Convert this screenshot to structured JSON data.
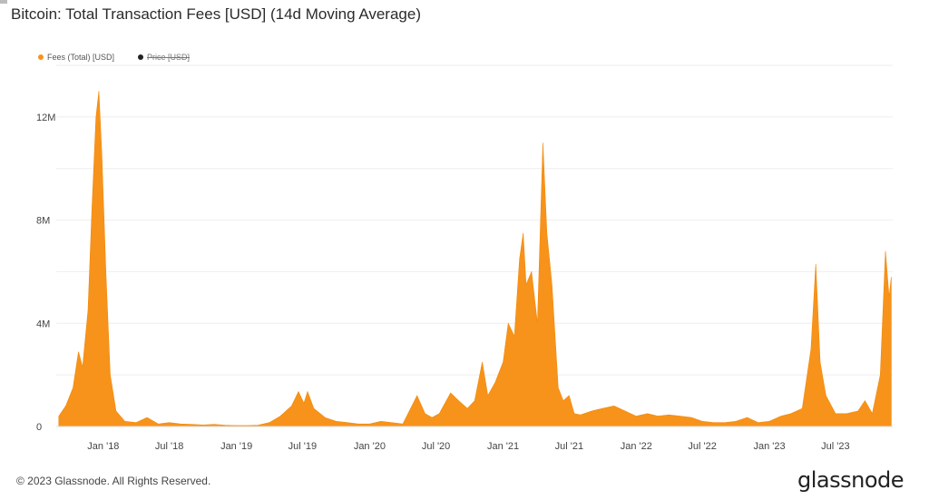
{
  "header": {
    "title": "Bitcoin: Total Transaction Fees [USD] (14d Moving Average)"
  },
  "legend": [
    {
      "label": "Fees (Total) [USD]",
      "color": "#f7931a",
      "active": true
    },
    {
      "label": "Price [USD]",
      "color": "#222222",
      "active": false
    }
  ],
  "footer": {
    "copyright": "© 2023 Glassnode. All Rights Reserved.",
    "brand": "glassnode"
  },
  "colors": {
    "fill": "#f7931a",
    "grid": "#eeeeee"
  },
  "chart_data": {
    "type": "area",
    "title": "Bitcoin: Total Transaction Fees [USD] (14d Moving Average)",
    "series": [
      {
        "name": "Fees (Total) [USD]",
        "points": [
          [
            "2017-09-01",
            0.4
          ],
          [
            "2017-09-20",
            0.8
          ],
          [
            "2017-10-10",
            1.5
          ],
          [
            "2017-10-25",
            2.9
          ],
          [
            "2017-11-05",
            2.3
          ],
          [
            "2017-11-20",
            4.5
          ],
          [
            "2017-12-01",
            8.5
          ],
          [
            "2017-12-12",
            12.0
          ],
          [
            "2017-12-20",
            13.0
          ],
          [
            "2017-12-28",
            10.5
          ],
          [
            "2018-01-08",
            6.0
          ],
          [
            "2018-01-20",
            2.0
          ],
          [
            "2018-02-05",
            0.6
          ],
          [
            "2018-03-01",
            0.2
          ],
          [
            "2018-04-01",
            0.15
          ],
          [
            "2018-05-01",
            0.35
          ],
          [
            "2018-06-01",
            0.1
          ],
          [
            "2018-07-01",
            0.15
          ],
          [
            "2018-08-01",
            0.1
          ],
          [
            "2018-09-01",
            0.08
          ],
          [
            "2018-10-01",
            0.06
          ],
          [
            "2018-11-01",
            0.08
          ],
          [
            "2018-12-01",
            0.05
          ],
          [
            "2019-01-01",
            0.04
          ],
          [
            "2019-02-01",
            0.04
          ],
          [
            "2019-03-01",
            0.05
          ],
          [
            "2019-04-01",
            0.15
          ],
          [
            "2019-05-01",
            0.4
          ],
          [
            "2019-06-01",
            0.8
          ],
          [
            "2019-06-20",
            1.35
          ],
          [
            "2019-07-05",
            0.9
          ],
          [
            "2019-07-15",
            1.35
          ],
          [
            "2019-08-01",
            0.7
          ],
          [
            "2019-09-01",
            0.35
          ],
          [
            "2019-10-01",
            0.2
          ],
          [
            "2019-11-01",
            0.15
          ],
          [
            "2019-12-01",
            0.1
          ],
          [
            "2020-01-01",
            0.1
          ],
          [
            "2020-02-01",
            0.2
          ],
          [
            "2020-03-01",
            0.15
          ],
          [
            "2020-04-01",
            0.1
          ],
          [
            "2020-05-10",
            1.2
          ],
          [
            "2020-06-01",
            0.5
          ],
          [
            "2020-06-20",
            0.35
          ],
          [
            "2020-07-10",
            0.5
          ],
          [
            "2020-08-10",
            1.3
          ],
          [
            "2020-09-01",
            1.0
          ],
          [
            "2020-09-25",
            0.7
          ],
          [
            "2020-10-15",
            1.0
          ],
          [
            "2020-11-05",
            2.5
          ],
          [
            "2020-11-20",
            1.2
          ],
          [
            "2020-12-10",
            1.7
          ],
          [
            "2021-01-01",
            2.5
          ],
          [
            "2021-01-15",
            4.0
          ],
          [
            "2021-02-01",
            3.5
          ],
          [
            "2021-02-15",
            6.5
          ],
          [
            "2021-02-25",
            7.5
          ],
          [
            "2021-03-05",
            5.5
          ],
          [
            "2021-03-20",
            6.0
          ],
          [
            "2021-04-05",
            4.0
          ],
          [
            "2021-04-20",
            11.0
          ],
          [
            "2021-05-01",
            7.5
          ],
          [
            "2021-05-15",
            5.5
          ],
          [
            "2021-06-01",
            1.5
          ],
          [
            "2021-06-15",
            1.0
          ],
          [
            "2021-07-01",
            1.2
          ],
          [
            "2021-07-15",
            0.5
          ],
          [
            "2021-08-01",
            0.45
          ],
          [
            "2021-09-01",
            0.6
          ],
          [
            "2021-10-01",
            0.7
          ],
          [
            "2021-11-01",
            0.8
          ],
          [
            "2021-12-01",
            0.6
          ],
          [
            "2022-01-01",
            0.4
          ],
          [
            "2022-02-01",
            0.5
          ],
          [
            "2022-03-01",
            0.4
          ],
          [
            "2022-04-01",
            0.45
          ],
          [
            "2022-05-01",
            0.4
          ],
          [
            "2022-06-01",
            0.35
          ],
          [
            "2022-07-01",
            0.2
          ],
          [
            "2022-08-01",
            0.15
          ],
          [
            "2022-09-01",
            0.15
          ],
          [
            "2022-10-01",
            0.2
          ],
          [
            "2022-11-01",
            0.35
          ],
          [
            "2022-12-01",
            0.15
          ],
          [
            "2023-01-01",
            0.2
          ],
          [
            "2023-02-01",
            0.4
          ],
          [
            "2023-03-01",
            0.5
          ],
          [
            "2023-04-01",
            0.7
          ],
          [
            "2023-04-25",
            3.0
          ],
          [
            "2023-05-08",
            6.3
          ],
          [
            "2023-05-20",
            2.5
          ],
          [
            "2023-06-05",
            1.2
          ],
          [
            "2023-07-01",
            0.5
          ],
          [
            "2023-08-01",
            0.5
          ],
          [
            "2023-09-01",
            0.6
          ],
          [
            "2023-09-20",
            1.0
          ],
          [
            "2023-10-10",
            0.5
          ],
          [
            "2023-11-01",
            2.0
          ],
          [
            "2023-11-15",
            6.8
          ],
          [
            "2023-11-25",
            5.0
          ],
          [
            "2023-12-01",
            5.8
          ]
        ]
      }
    ],
    "yticks": [
      "0",
      "4M",
      "8M",
      "12M"
    ],
    "ytick_values": [
      0,
      4,
      8,
      12
    ],
    "ylim": [
      0,
      14
    ],
    "xticks": [
      "Jan '18",
      "Jul '18",
      "Jan '19",
      "Jul '19",
      "Jan '20",
      "Jul '20",
      "Jan '21",
      "Jul '21",
      "Jan '22",
      "Jul '22",
      "Jan '23",
      "Jul '23"
    ],
    "xtick_dates": [
      "2018-01-01",
      "2018-07-01",
      "2019-01-01",
      "2019-07-01",
      "2020-01-01",
      "2020-07-01",
      "2021-01-01",
      "2021-07-01",
      "2022-01-01",
      "2022-07-01",
      "2023-01-01",
      "2023-07-01"
    ],
    "xlim": [
      "2017-08-25",
      "2023-12-05"
    ],
    "grid": true
  }
}
